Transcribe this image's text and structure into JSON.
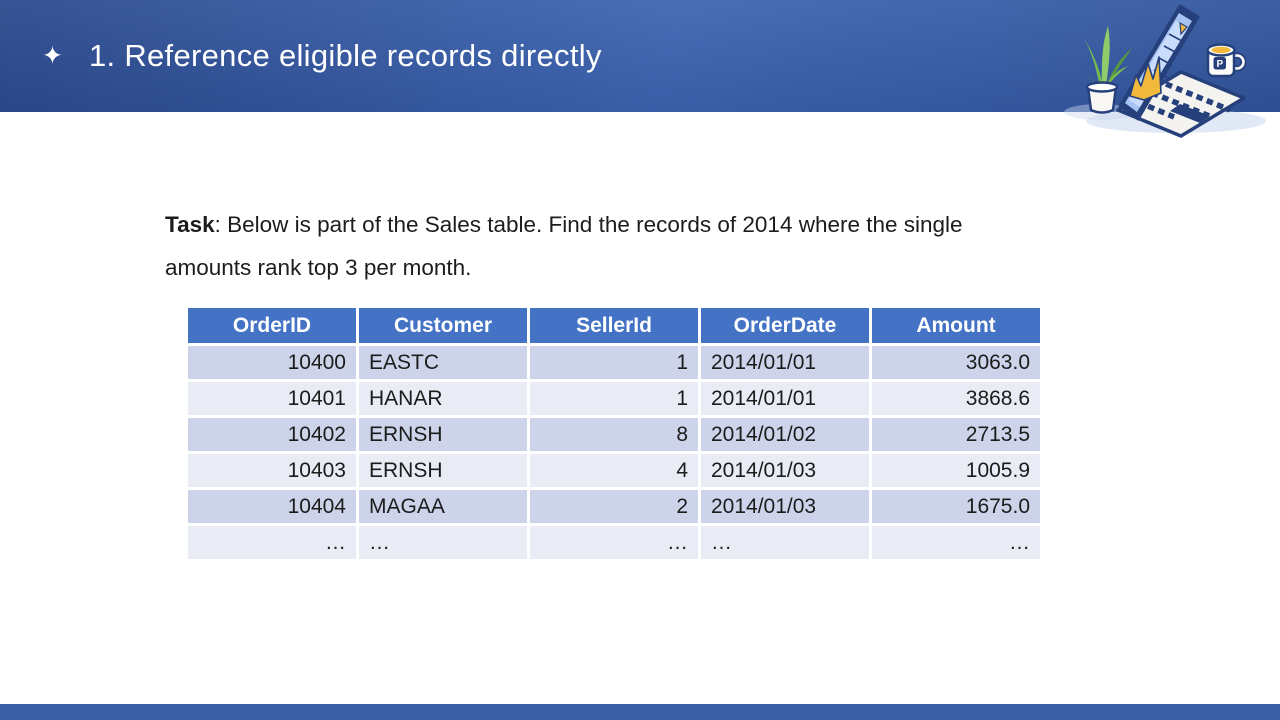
{
  "header": {
    "star_glyph": "✦",
    "title": "1. Reference eligible records directly"
  },
  "task": {
    "label": "Task",
    "text": ": Below is part of the Sales table. Find the records of 2014 where the single amounts rank top 3 per month."
  },
  "table": {
    "columns": [
      {
        "label": "OrderID",
        "align": "right"
      },
      {
        "label": "Customer",
        "align": "left"
      },
      {
        "label": "SellerId",
        "align": "right"
      },
      {
        "label": "OrderDate",
        "align": "left"
      },
      {
        "label": "Amount",
        "align": "right"
      }
    ],
    "rows": [
      [
        "10400",
        "EASTC",
        "1",
        "2014/01/01",
        "3063.0"
      ],
      [
        "10401",
        "HANAR",
        "1",
        "2014/01/01",
        "3868.6"
      ],
      [
        "10402",
        "ERNSH",
        "8",
        "2014/01/02",
        "2713.5"
      ],
      [
        "10403",
        "ERNSH",
        "4",
        "2014/01/03",
        "1005.9"
      ],
      [
        "10404",
        "MAGAA",
        "2",
        "2014/01/03",
        "1675.0"
      ],
      [
        "…",
        "…",
        "…",
        "…",
        "…"
      ]
    ]
  },
  "illustration": {
    "items": [
      "plant",
      "laptop-with-chart",
      "coffee-mug"
    ],
    "mug_logo": "P"
  },
  "colors": {
    "header_gradient_left": "#2C4B8E",
    "header_gradient_mid": "#3E66B3",
    "header_gradient_right": "#33559C",
    "table_header_bg": "#4472C4",
    "table_header_text": "#FFFFFF",
    "row_band_dark": "#CDD4EA",
    "row_band_light": "#E9EBF5",
    "body_text": "#1C1C1C",
    "footer_bg": "#3C5FA6",
    "accent_navy": "#26407C",
    "accent_yellow": "#F2B93D",
    "screen_blue": "#A6C4F3",
    "screen_panel": "#C9DCFB",
    "plant_green": "#76B94F",
    "plant_green_dark": "#579B3A",
    "plant_green_light": "#8FCB68",
    "laptop_body": "#F5F3EF",
    "shadow_tint": "#CBD7EF"
  }
}
